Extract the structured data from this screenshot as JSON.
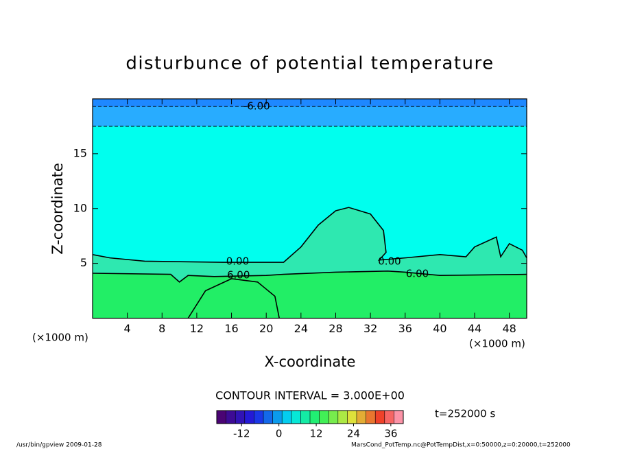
{
  "chart_data": {
    "type": "contour",
    "title": "disturbunce of potential temperature",
    "x_label": "X-coordinate",
    "y_label": "Z-coordinate",
    "x_unit_labels": [
      "(×1000 m)",
      "(×1000 m)"
    ],
    "xlim": [
      0,
      50
    ],
    "ylim": [
      0,
      20
    ],
    "xticks": [
      4,
      8,
      12,
      16,
      20,
      24,
      28,
      32,
      36,
      40,
      44,
      48
    ],
    "yticks": [
      5,
      10,
      15
    ],
    "top_color": "#1e88ff",
    "contours": [
      {
        "level": -6,
        "fill": "#28acff",
        "x": [
          0,
          50
        ],
        "y": [
          19.3,
          19.3
        ]
      },
      {
        "level": -3,
        "fill": "#00ffee",
        "x": [
          0,
          50
        ],
        "y": [
          17.5,
          17.5
        ]
      },
      {
        "level": 0,
        "fill": "#2ee8b0",
        "x": [
          0,
          2,
          6,
          15,
          22,
          24,
          26,
          28,
          29.5,
          32,
          33.5,
          33.8,
          33,
          36,
          40,
          43,
          44,
          46.5,
          47,
          48,
          49.5,
          50
        ],
        "y": [
          5.8,
          5.5,
          5.2,
          5.1,
          5.1,
          6.5,
          8.5,
          9.8,
          10.1,
          9.5,
          8,
          6,
          5.3,
          5.5,
          5.8,
          5.6,
          6.5,
          7.4,
          5.6,
          6.8,
          6.2,
          5.5
        ]
      },
      {
        "level": 6,
        "fill": "#22ee66",
        "x": [
          0,
          9,
          10,
          11,
          14,
          20,
          22,
          28,
          34,
          36,
          40,
          50
        ],
        "y": [
          4.1,
          4.0,
          3.3,
          3.9,
          3.8,
          3.9,
          4.0,
          4.2,
          4.3,
          4.2,
          3.9,
          4.0
        ]
      },
      {
        "level": 6,
        "x": [
          11,
          13,
          16,
          19,
          21,
          21.5
        ],
        "y": [
          0,
          2.5,
          3.6,
          3.3,
          2,
          0
        ]
      }
    ],
    "contour_labels": [
      {
        "value": -6,
        "label": "-6.00"
      },
      {
        "value": 0,
        "label": "0.00"
      },
      {
        "value": 0,
        "label": "0.00"
      },
      {
        "value": 6,
        "label": "6.00"
      },
      {
        "value": 6,
        "label": "6.00"
      }
    ],
    "interval_label": "CONTOUR INTERVAL = 3.000E+00",
    "time_label": "t=252000 s",
    "colorbar": {
      "lim": [
        -20,
        40
      ],
      "ticks": [
        -12,
        0,
        12,
        24,
        36
      ]
    },
    "footer_left": "/usr/bin/gpview   2009-01-28",
    "footer_right": "MarsCond_PotTemp.nc@PotTempDist,x=0:50000,z=0:20000,t=252000"
  }
}
